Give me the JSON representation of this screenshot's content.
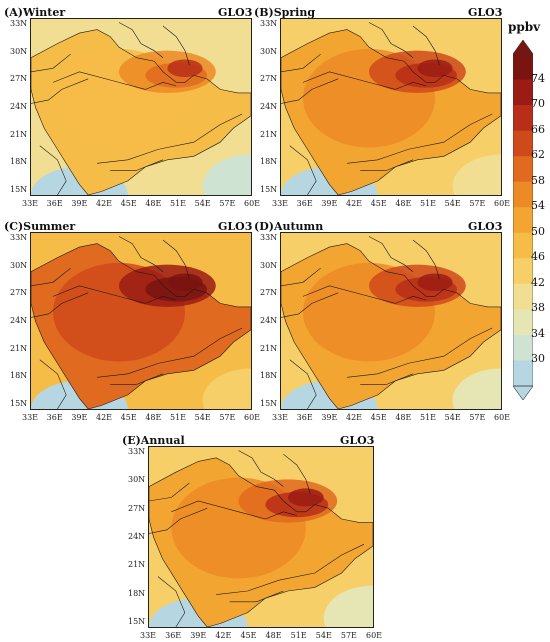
{
  "variable": "GLO3",
  "lon_ticks": [
    "33E",
    "36E",
    "39E",
    "42E",
    "45E",
    "48E",
    "51E",
    "54E",
    "57E",
    "60E"
  ],
  "lat_ticks": [
    "33N",
    "30N",
    "27N",
    "24N",
    "21N",
    "18N",
    "15N"
  ],
  "panels": [
    {
      "key": "winter",
      "title": "(A)Winter",
      "level": 0.0
    },
    {
      "key": "spring",
      "title": "(B)Spring",
      "level": 0.55
    },
    {
      "key": "summer",
      "title": "(C)Summer",
      "level": 1.0
    },
    {
      "key": "autumn",
      "title": "(D)Autumn",
      "level": 0.5
    },
    {
      "key": "annual",
      "title": "(E)Annual",
      "level": 0.45
    }
  ],
  "colorbar": {
    "title": "ppbv",
    "labels": [
      "74",
      "70",
      "66",
      "62",
      "58",
      "54",
      "50",
      "46",
      "42",
      "38",
      "34",
      "30"
    ],
    "colors": [
      "#7a1410",
      "#9b1c14",
      "#b92e18",
      "#cf4a1b",
      "#e06a1f",
      "#ec8a25",
      "#f3a532",
      "#f6bc48",
      "#f6cf68",
      "#f2de92",
      "#e6e6b4",
      "#cfe3d2",
      "#b6d7e2"
    ]
  }
}
